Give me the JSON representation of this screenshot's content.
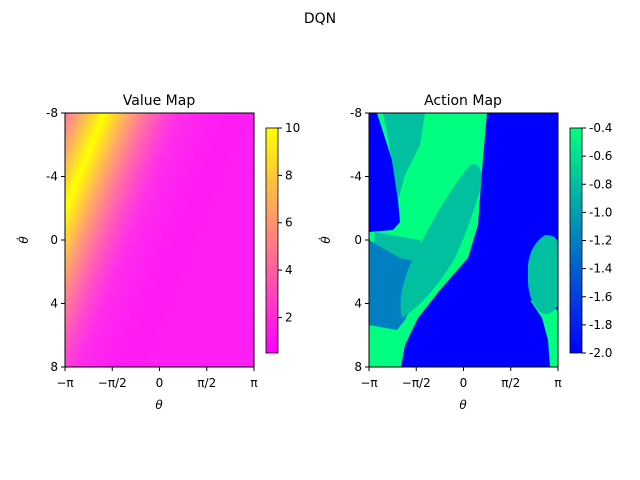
{
  "figure": {
    "suptitle": "DQN"
  },
  "chart_data": [
    {
      "type": "heatmap",
      "title": "Value Map",
      "xlabel": "θ",
      "ylabel": "θ̇",
      "x_range": [
        -3.1416,
        3.1416
      ],
      "y_range": [
        -8,
        8
      ],
      "y_inverted": true,
      "xticks": [
        "−π",
        "−π/2",
        "0",
        "π/2",
        "π"
      ],
      "yticks": [
        "-8",
        "-4",
        "0",
        "4",
        "8"
      ],
      "colormap": "spring",
      "colors": {
        "low": "#ff00ff",
        "high": "#ffff00"
      },
      "colorbar": {
        "range": [
          0.5,
          10
        ],
        "ticks": [
          "2",
          "4",
          "6",
          "8",
          "10"
        ]
      },
      "ridge": {
        "center": 0,
        "slope_theta_per_thetadot": -0.14,
        "peak_value": 10,
        "min_value": 0.5
      }
    },
    {
      "type": "heatmap",
      "title": "Action Map",
      "xlabel": "θ",
      "ylabel": "θ̇",
      "x_range": [
        -3.1416,
        3.1416
      ],
      "y_range": [
        -8,
        8
      ],
      "y_inverted": true,
      "xticks": [
        "−π",
        "−π/2",
        "0",
        "π/2",
        "π"
      ],
      "yticks": [
        "-8",
        "-4",
        "0",
        "4",
        "8"
      ],
      "colormap": "winter",
      "colors": {
        "low": "#0000ff",
        "high": "#00ff80"
      },
      "colorbar": {
        "range": [
          -2.0,
          -0.4
        ],
        "ticks": [
          "-0.4",
          "-0.6",
          "-0.8",
          "-1.0",
          "-1.2",
          "-1.4",
          "-1.6",
          "-1.8",
          "-2.0"
        ]
      },
      "region_colors": {
        "action_-0.4": "#00ff80",
        "action_-1.0": "#00c0a0",
        "action_-1.4": "#0080c0",
        "action_-2.0": "#0000ff"
      }
    }
  ]
}
